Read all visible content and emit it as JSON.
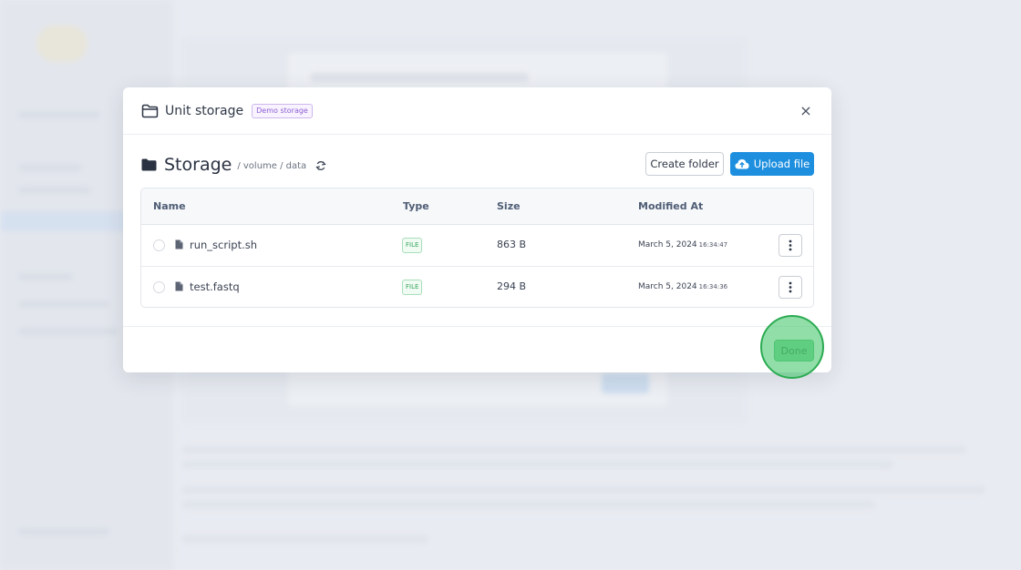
{
  "modal": {
    "title": "Unit storage",
    "badge": "Demo storage",
    "close_label": "×"
  },
  "storage": {
    "title": "Storage",
    "path": "/ volume / data",
    "create_folder_label": "Create folder",
    "upload_label": "Upload file"
  },
  "table": {
    "headers": {
      "name": "Name",
      "type": "Type",
      "size": "Size",
      "modified": "Modified At"
    },
    "rows": [
      {
        "name": "run_script.sh",
        "type": "FILE",
        "size": "863 B",
        "date": "March 5, 2024",
        "time": "16:34:47"
      },
      {
        "name": "test.fastq",
        "type": "FILE",
        "size": "294 B",
        "date": "March 5, 2024",
        "time": "16:34:36"
      }
    ]
  },
  "footer": {
    "done_label": "Done"
  },
  "colors": {
    "accent_blue": "#1e8fdf",
    "done_green": "#86d79c",
    "badge_purple": "#8e5fd2",
    "file_badge_green": "#3aa55d"
  },
  "icons": [
    "folder-outline-icon",
    "close-icon",
    "folder-filled-icon",
    "refresh-icon",
    "cloud-upload-icon",
    "file-icon",
    "kebab-menu-icon"
  ]
}
